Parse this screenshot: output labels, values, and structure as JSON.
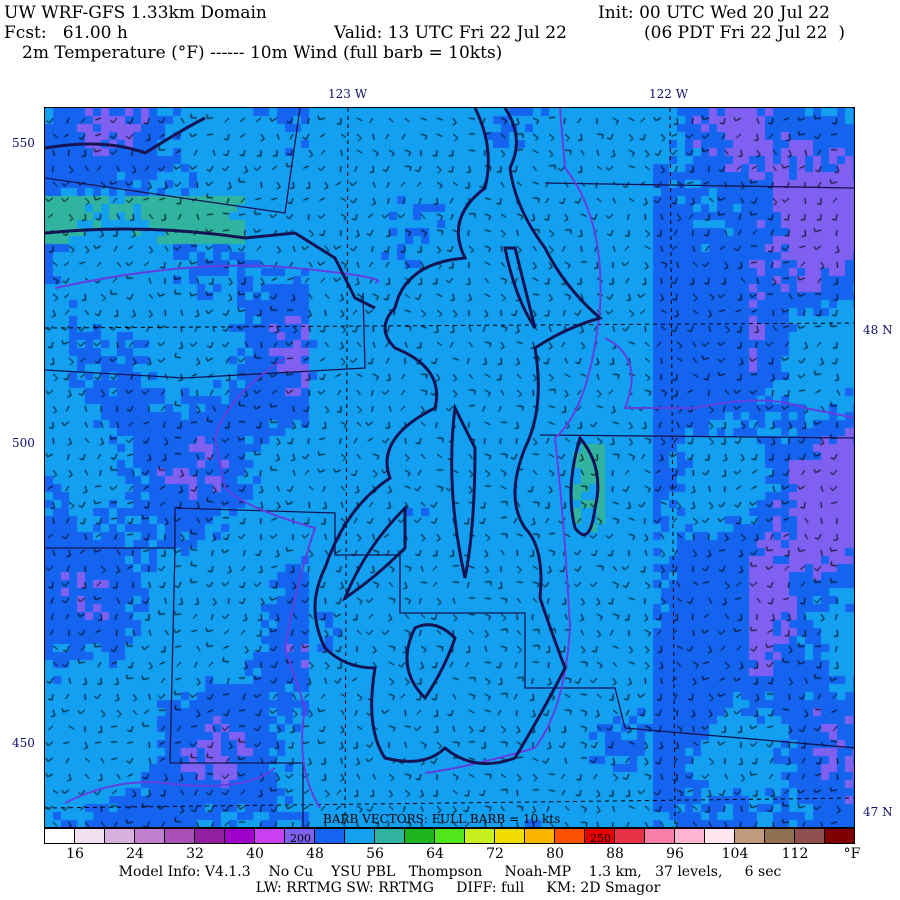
{
  "header": {
    "title": "UW WRF-GFS 1.33km Domain",
    "init": "Init: 00 UTC Wed 20 Jul 22",
    "fcst": "Fcst:   61.00 h",
    "valid": "Valid: 13 UTC Fri 22 Jul 22",
    "local_time": "(06 PDT Fri 22 Jul 22  )",
    "fields": "2m Temperature (°F) ------ 10m Wind (full barb = 10kts)"
  },
  "axes": {
    "lon_labels": [
      "123 W",
      "122 W"
    ],
    "lat_labels": [
      "48 N",
      "47 N"
    ],
    "grid_labels": [
      "550",
      "500",
      "450"
    ]
  },
  "map": {
    "barb_caption": "BARB VECTORS:  FULL BARB = 10 kts",
    "overlay_labels": [
      "200",
      "250"
    ],
    "coast_color": "#141454",
    "border_color": "#6040e0"
  },
  "colorbar": {
    "colors": [
      "#ffffff",
      "#f0e0f0",
      "#d8b0e0",
      "#c080d0",
      "#a850b8",
      "#9020a0",
      "#a000c8",
      "#c840f0",
      "#8060f0",
      "#1464f0",
      "#14a0f0",
      "#30b4a0",
      "#1eb41e",
      "#50e61e",
      "#c8f01e",
      "#f0dc00",
      "#fab400",
      "#fa5000",
      "#e60000",
      "#e63246",
      "#fa7daa",
      "#ffb4d2",
      "#ffe6f0",
      "#c09c7c",
      "#907050",
      "#905050",
      "#800000"
    ],
    "ticks": [
      "16",
      "24",
      "32",
      "40",
      "48",
      "56",
      "64",
      "72",
      "80",
      "88",
      "96",
      "104",
      "112"
    ],
    "unit": "°F"
  },
  "footer": {
    "line1": "Model Info: V4.1.3    No Cu    YSU PBL   Thompson     Noah-MP    1.3 km,   37 levels,     6 sec",
    "line2": "LW: RRTMG SW: RRTMG     DIFF: full     KM: 2D Smagor"
  }
}
